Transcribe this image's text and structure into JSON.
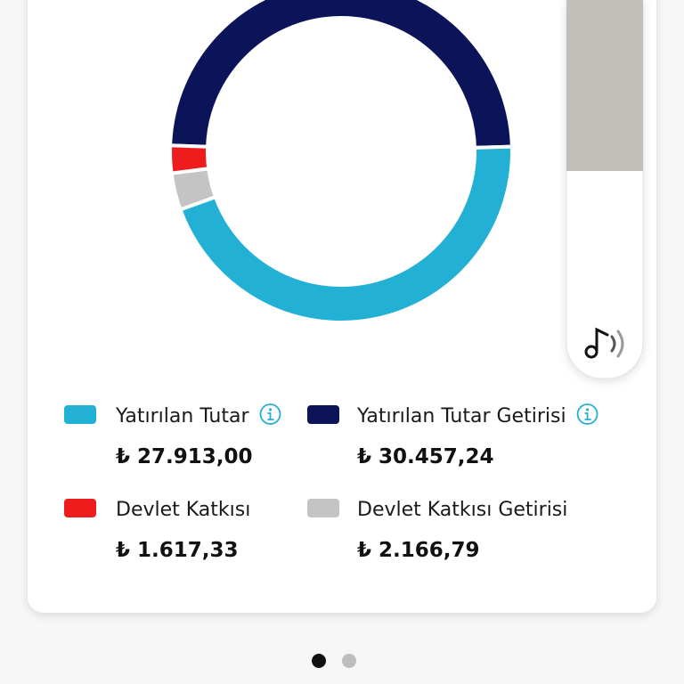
{
  "chart_data": {
    "type": "donut",
    "categories": [
      "Yatırılan Tutar",
      "Yatırılan Tutar Getirisi",
      "Devlet Katkısı",
      "Devlet Katkısı Getirisi"
    ],
    "values": [
      27913.0,
      30457.24,
      1617.33,
      2166.79
    ],
    "value_labels": [
      "₺ 27.913,00",
      "₺ 30.457,24",
      "₺ 1.617,33",
      "₺ 2.166,79"
    ],
    "colors": [
      "#22b0d4",
      "#0b1459",
      "#ee1c1c",
      "#c4c4c4"
    ]
  }
}
